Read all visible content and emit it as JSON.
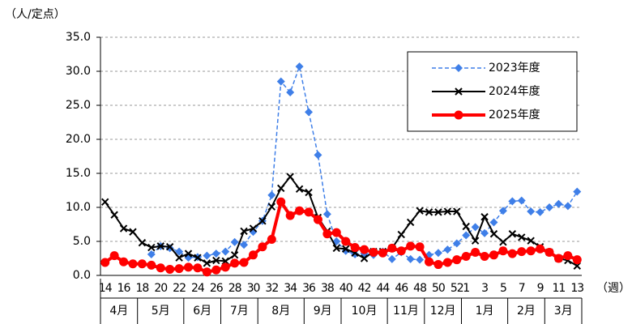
{
  "chart_data": {
    "type": "line",
    "y_label": "（人/定点）",
    "x_label": "（週）",
    "categories": [
      "14",
      null,
      "16",
      null,
      "18",
      null,
      "20",
      null,
      "22",
      null,
      "24",
      null,
      "26",
      null,
      "28",
      null,
      "30",
      null,
      "32",
      null,
      "34",
      null,
      "36",
      null,
      "38",
      null,
      "40",
      null,
      "42",
      null,
      "44",
      null,
      "46",
      null,
      "48",
      null,
      "50",
      null,
      "52",
      "1",
      null,
      "3",
      null,
      "5",
      null,
      "7",
      null,
      "9",
      null,
      "11",
      null,
      "13"
    ],
    "months": [
      "4月",
      "5月",
      "6月",
      "7月",
      "8月",
      "9月",
      "10月",
      "11月",
      "12月",
      "1月",
      "2月",
      "3月"
    ],
    "ylim": [
      0,
      35
    ],
    "yticks": [
      {
        "value": 0,
        "label": "0.0"
      },
      {
        "value": 5,
        "label": "5.0"
      },
      {
        "value": 10,
        "label": "10.0"
      },
      {
        "value": 15,
        "label": "15.0"
      },
      {
        "value": 20,
        "label": "20.0"
      },
      {
        "value": 25,
        "label": "25.0"
      },
      {
        "value": 30,
        "label": "30.0"
      },
      {
        "value": 35,
        "label": "35.0"
      }
    ],
    "grid": true,
    "legend": "upper right",
    "series": [
      {
        "name": "2023年度",
        "color": "#3f7fe8",
        "marker": "diamond",
        "dashed": true,
        "values": [
          null,
          null,
          null,
          null,
          null,
          3.1,
          4.3,
          4.0,
          3.5,
          2.6,
          2.7,
          2.9,
          3.2,
          3.5,
          4.9,
          4.5,
          6.4,
          8.0,
          11.8,
          28.5,
          26.9,
          30.7,
          24.0,
          17.7,
          9.0,
          5.0,
          3.6,
          3.1,
          3.2,
          3.0,
          3.5,
          2.4,
          3.4,
          2.4,
          2.3,
          3.0,
          3.3,
          3.8,
          4.7,
          5.9,
          7.1,
          6.2,
          7.8,
          9.5,
          10.9,
          11.0,
          9.4,
          9.3,
          10.0,
          10.5,
          10.2,
          12.3
        ]
      },
      {
        "name": "2024年度",
        "color": "#000000",
        "marker": "x",
        "dashed": false,
        "values": [
          10.8,
          8.9,
          6.9,
          6.4,
          4.8,
          4.1,
          4.3,
          4.2,
          2.6,
          3.2,
          2.6,
          1.8,
          2.2,
          2.1,
          3.0,
          6.5,
          6.9,
          8.0,
          10.1,
          12.8,
          14.5,
          12.7,
          12.2,
          8.5,
          6.5,
          4.0,
          3.9,
          3.3,
          2.5,
          3.5,
          3.5,
          4.0,
          6.0,
          7.8,
          9.5,
          9.3,
          9.3,
          9.4,
          9.4,
          7.2,
          5.1,
          8.6,
          6.1,
          4.9,
          6.1,
          5.6,
          5.1,
          4.2,
          3.4,
          2.5,
          2.2,
          1.4
        ]
      },
      {
        "name": "2025年度",
        "color": "#ff0000",
        "marker": "circle",
        "dashed": false,
        "values": [
          1.9,
          2.9,
          2.0,
          1.7,
          1.7,
          1.5,
          1.1,
          0.9,
          1.0,
          1.2,
          1.1,
          0.5,
          0.8,
          1.2,
          1.8,
          1.9,
          3.0,
          4.2,
          5.3,
          10.8,
          8.8,
          9.5,
          9.3,
          8.2,
          6.1,
          6.3,
          5.0,
          4.1,
          3.8,
          3.4,
          3.3,
          4.0,
          3.6,
          4.3,
          4.2,
          2.0,
          1.6,
          1.9,
          2.3,
          2.8,
          3.4,
          2.8,
          3.0,
          3.6,
          3.2,
          3.5,
          3.6,
          3.9,
          3.4,
          2.5,
          2.9,
          2.3
        ]
      }
    ]
  }
}
